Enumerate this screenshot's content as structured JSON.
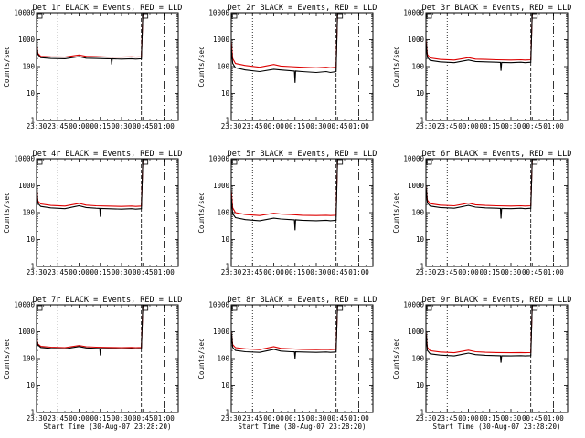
{
  "figure": {
    "background": "#ffffff",
    "axis_color": "#000000",
    "colors": {
      "events": "#000000",
      "lld": "#dd0000"
    }
  },
  "chart_data": [
    {
      "type": "line",
      "title": "Det 1r BLACK = Events, RED = LLD",
      "xlabel": "",
      "ylabel": "Counts/sec",
      "y_scale": "log",
      "ylim": [
        1,
        10000
      ],
      "yticks": [
        "1",
        "10",
        "100",
        "1000",
        "10000"
      ],
      "xlim": [
        "23:30",
        "01:10"
      ],
      "xticks": [
        "23:30",
        "23:45",
        "00:00",
        "00:15",
        "00:30",
        "00:45",
        "01:00"
      ],
      "grid": false,
      "marker_lines": [
        "23:30",
        "23:45",
        "00:44",
        "01:00"
      ],
      "series": [
        {
          "name": "Events",
          "color": "#000000",
          "x": [
            "23:30",
            "23:31",
            "23:33",
            "23:40",
            "23:50",
            "00:00",
            "00:05",
            "00:12",
            "00:20",
            "00:30",
            "00:37",
            "00:40",
            "00:44",
            "00:45"
          ],
          "values": [
            700,
            280,
            215,
            200,
            195,
            235,
            205,
            200,
            195,
            190,
            195,
            190,
            195,
            10000
          ],
          "dips": [
            {
              "x": "00:23",
              "value": 120
            }
          ]
        },
        {
          "name": "LLD",
          "color": "#dd0000",
          "x": [
            "23:30",
            "23:31",
            "23:33",
            "23:40",
            "23:50",
            "00:00",
            "00:05",
            "00:12",
            "00:20",
            "00:30",
            "00:37",
            "00:40",
            "00:44",
            "00:45"
          ],
          "values": [
            760,
            310,
            240,
            230,
            225,
            270,
            240,
            235,
            225,
            225,
            230,
            225,
            230,
            10000
          ]
        }
      ]
    },
    {
      "type": "line",
      "title": "Det 2r BLACK = Events, RED = LLD",
      "xlabel": "",
      "ylabel": "Counts/sec",
      "y_scale": "log",
      "ylim": [
        1,
        10000
      ],
      "yticks": [
        "1",
        "10",
        "100",
        "1000",
        "10000"
      ],
      "xlim": [
        "23:30",
        "01:10"
      ],
      "xticks": [
        "23:30",
        "23:45",
        "00:00",
        "00:15",
        "00:30",
        "00:45",
        "01:00"
      ],
      "grid": false,
      "marker_lines": [
        "23:30",
        "23:45",
        "00:44",
        "01:00"
      ],
      "series": [
        {
          "name": "Events",
          "color": "#000000",
          "x": [
            "23:30",
            "23:31",
            "23:33",
            "23:40",
            "23:50",
            "00:00",
            "00:05",
            "00:12",
            "00:20",
            "00:30",
            "00:37",
            "00:40",
            "00:44",
            "00:45"
          ],
          "values": [
            500,
            130,
            90,
            75,
            65,
            80,
            75,
            70,
            65,
            60,
            65,
            60,
            65,
            10000
          ],
          "dips": [
            {
              "x": "00:15",
              "value": 25
            }
          ]
        },
        {
          "name": "LLD",
          "color": "#dd0000",
          "x": [
            "23:30",
            "23:31",
            "23:33",
            "23:40",
            "23:50",
            "00:00",
            "00:05",
            "00:12",
            "00:20",
            "00:30",
            "00:37",
            "00:40",
            "00:44",
            "00:45"
          ],
          "values": [
            900,
            200,
            130,
            110,
            95,
            120,
            105,
            100,
            95,
            90,
            95,
            90,
            95,
            10000
          ]
        }
      ]
    },
    {
      "type": "line",
      "title": "Det 3r BLACK = Events, RED = LLD",
      "xlabel": "",
      "ylabel": "Counts/sec",
      "y_scale": "log",
      "ylim": [
        1,
        10000
      ],
      "yticks": [
        "1",
        "10",
        "100",
        "1000",
        "10000"
      ],
      "xlim": [
        "23:30",
        "01:10"
      ],
      "xticks": [
        "23:30",
        "23:45",
        "00:00",
        "00:15",
        "00:30",
        "00:45",
        "01:00"
      ],
      "grid": false,
      "marker_lines": [
        "23:30",
        "23:45",
        "00:44",
        "01:00"
      ],
      "series": [
        {
          "name": "Events",
          "color": "#000000",
          "x": [
            "23:30",
            "23:31",
            "23:33",
            "23:40",
            "23:50",
            "00:00",
            "00:05",
            "00:12",
            "00:20",
            "00:30",
            "00:37",
            "00:40",
            "00:44",
            "00:45"
          ],
          "values": [
            800,
            220,
            170,
            150,
            140,
            175,
            155,
            150,
            145,
            140,
            145,
            140,
            145,
            10000
          ],
          "dips": [
            {
              "x": "00:23",
              "value": 70
            }
          ]
        },
        {
          "name": "LLD",
          "color": "#dd0000",
          "x": [
            "23:30",
            "23:31",
            "23:33",
            "23:40",
            "23:50",
            "00:00",
            "00:05",
            "00:12",
            "00:20",
            "00:30",
            "00:37",
            "00:40",
            "00:44",
            "00:45"
          ],
          "values": [
            1000,
            280,
            210,
            185,
            175,
            215,
            190,
            185,
            180,
            175,
            180,
            175,
            180,
            10000
          ]
        }
      ]
    },
    {
      "type": "line",
      "title": "Det 4r BLACK = Events, RED = LLD",
      "xlabel": "",
      "ylabel": "Counts/sec",
      "y_scale": "log",
      "ylim": [
        1,
        10000
      ],
      "yticks": [
        "1",
        "10",
        "100",
        "1000",
        "10000"
      ],
      "xlim": [
        "23:30",
        "01:10"
      ],
      "xticks": [
        "23:30",
        "23:45",
        "00:00",
        "00:15",
        "00:30",
        "00:45",
        "01:00"
      ],
      "grid": false,
      "marker_lines": [
        "23:30",
        "23:45",
        "00:44",
        "01:00"
      ],
      "series": [
        {
          "name": "Events",
          "color": "#000000",
          "x": [
            "23:30",
            "23:31",
            "23:33",
            "23:40",
            "23:50",
            "00:00",
            "00:05",
            "00:12",
            "00:20",
            "00:30",
            "00:37",
            "00:40",
            "00:44",
            "00:45"
          ],
          "values": [
            900,
            220,
            170,
            150,
            140,
            180,
            155,
            145,
            140,
            135,
            140,
            135,
            140,
            10000
          ],
          "dips": [
            {
              "x": "00:15",
              "value": 70
            }
          ]
        },
        {
          "name": "LLD",
          "color": "#dd0000",
          "x": [
            "23:30",
            "23:31",
            "23:33",
            "23:40",
            "23:50",
            "00:00",
            "00:05",
            "00:12",
            "00:20",
            "00:30",
            "00:37",
            "00:40",
            "00:44",
            "00:45"
          ],
          "values": [
            1000,
            270,
            210,
            185,
            175,
            220,
            190,
            180,
            175,
            170,
            175,
            170,
            175,
            10000
          ]
        }
      ]
    },
    {
      "type": "line",
      "title": "Det 5r BLACK = Events, RED = LLD",
      "xlabel": "",
      "ylabel": "Counts/sec",
      "y_scale": "log",
      "ylim": [
        1,
        10000
      ],
      "yticks": [
        "1",
        "10",
        "100",
        "1000",
        "10000"
      ],
      "xlim": [
        "23:30",
        "01:10"
      ],
      "xticks": [
        "23:30",
        "23:45",
        "00:00",
        "00:15",
        "00:30",
        "00:45",
        "01:00"
      ],
      "grid": false,
      "marker_lines": [
        "23:30",
        "23:45",
        "00:44",
        "01:00"
      ],
      "series": [
        {
          "name": "Events",
          "color": "#000000",
          "x": [
            "23:30",
            "23:31",
            "23:33",
            "23:40",
            "23:50",
            "00:00",
            "00:05",
            "00:12",
            "00:20",
            "00:30",
            "00:37",
            "00:40",
            "00:44",
            "00:45"
          ],
          "values": [
            400,
            90,
            65,
            55,
            50,
            62,
            58,
            55,
            52,
            50,
            52,
            50,
            52,
            10000
          ],
          "dips": [
            {
              "x": "00:15",
              "value": 22
            }
          ]
        },
        {
          "name": "LLD",
          "color": "#dd0000",
          "x": [
            "23:30",
            "23:31",
            "23:33",
            "23:40",
            "23:50",
            "00:00",
            "00:05",
            "00:12",
            "00:20",
            "00:30",
            "00:37",
            "00:40",
            "00:44",
            "00:45"
          ],
          "values": [
            700,
            150,
            100,
            85,
            78,
            95,
            88,
            85,
            80,
            78,
            80,
            78,
            80,
            10000
          ]
        }
      ]
    },
    {
      "type": "line",
      "title": "Det 6r BLACK = Events, RED = LLD",
      "xlabel": "",
      "ylabel": "Counts/sec",
      "y_scale": "log",
      "ylim": [
        1,
        10000
      ],
      "yticks": [
        "1",
        "10",
        "100",
        "1000",
        "10000"
      ],
      "xlim": [
        "23:30",
        "01:10"
      ],
      "xticks": [
        "23:30",
        "23:45",
        "00:00",
        "00:15",
        "00:30",
        "00:45",
        "01:00"
      ],
      "grid": false,
      "marker_lines": [
        "23:30",
        "23:45",
        "00:44",
        "01:00"
      ],
      "series": [
        {
          "name": "Events",
          "color": "#000000",
          "x": [
            "23:30",
            "23:31",
            "23:33",
            "23:40",
            "23:50",
            "00:00",
            "00:05",
            "00:12",
            "00:20",
            "00:30",
            "00:37",
            "00:40",
            "00:44",
            "00:45"
          ],
          "values": [
            900,
            230,
            175,
            155,
            145,
            185,
            160,
            150,
            145,
            140,
            145,
            140,
            145,
            10000
          ],
          "dips": [
            {
              "x": "00:23",
              "value": 60
            }
          ]
        },
        {
          "name": "LLD",
          "color": "#dd0000",
          "x": [
            "23:30",
            "23:31",
            "23:33",
            "23:40",
            "23:50",
            "00:00",
            "00:05",
            "00:12",
            "00:20",
            "00:30",
            "00:37",
            "00:40",
            "00:44",
            "00:45"
          ],
          "values": [
            1000,
            290,
            215,
            190,
            180,
            225,
            195,
            185,
            180,
            175,
            180,
            175,
            180,
            10000
          ]
        }
      ]
    },
    {
      "type": "line",
      "title": "Det 7r BLACK = Events, RED = LLD",
      "xlabel": "Start Time (30-Aug-07 23:28:20)",
      "ylabel": "Counts/sec",
      "y_scale": "log",
      "ylim": [
        1,
        10000
      ],
      "yticks": [
        "1",
        "10",
        "100",
        "1000",
        "10000"
      ],
      "xlim": [
        "23:30",
        "01:10"
      ],
      "xticks": [
        "23:30",
        "23:45",
        "00:00",
        "00:15",
        "00:30",
        "00:45",
        "01:00"
      ],
      "grid": false,
      "marker_lines": [
        "23:30",
        "23:45",
        "00:44",
        "01:00"
      ],
      "series": [
        {
          "name": "Events",
          "color": "#000000",
          "x": [
            "23:30",
            "23:31",
            "23:33",
            "23:40",
            "23:50",
            "00:00",
            "00:05",
            "00:12",
            "00:20",
            "00:30",
            "00:37",
            "00:40",
            "00:44",
            "00:45"
          ],
          "values": [
            550,
            320,
            260,
            240,
            230,
            280,
            250,
            240,
            235,
            230,
            235,
            230,
            235,
            10000
          ],
          "dips": [
            {
              "x": "00:15",
              "value": 130
            }
          ]
        },
        {
          "name": "LLD",
          "color": "#dd0000",
          "x": [
            "23:30",
            "23:31",
            "23:33",
            "23:40",
            "23:50",
            "00:00",
            "00:05",
            "00:12",
            "00:20",
            "00:30",
            "00:37",
            "00:40",
            "00:44",
            "00:45"
          ],
          "values": [
            600,
            350,
            285,
            265,
            255,
            305,
            275,
            265,
            260,
            255,
            260,
            255,
            260,
            10000
          ]
        }
      ]
    },
    {
      "type": "line",
      "title": "Det 8r BLACK = Events, RED = LLD",
      "xlabel": "Start Time (30-Aug-07 23:28:20)",
      "ylabel": "Counts/sec",
      "y_scale": "log",
      "ylim": [
        1,
        10000
      ],
      "yticks": [
        "1",
        "10",
        "100",
        "1000",
        "10000"
      ],
      "xlim": [
        "23:30",
        "01:10"
      ],
      "xticks": [
        "23:30",
        "23:45",
        "00:00",
        "00:15",
        "00:30",
        "00:45",
        "01:00"
      ],
      "grid": false,
      "marker_lines": [
        "23:30",
        "23:45",
        "00:44",
        "01:00"
      ],
      "series": [
        {
          "name": "Events",
          "color": "#000000",
          "x": [
            "23:30",
            "23:31",
            "23:33",
            "23:40",
            "23:50",
            "00:00",
            "00:05",
            "00:12",
            "00:20",
            "00:30",
            "00:37",
            "00:40",
            "00:44",
            "00:45"
          ],
          "values": [
            1000,
            260,
            200,
            180,
            170,
            220,
            190,
            180,
            175,
            170,
            175,
            170,
            175,
            10000
          ],
          "dips": [
            {
              "x": "00:15",
              "value": 100
            }
          ]
        },
        {
          "name": "LLD",
          "color": "#dd0000",
          "x": [
            "23:30",
            "23:31",
            "23:33",
            "23:40",
            "23:50",
            "00:00",
            "00:05",
            "00:12",
            "00:20",
            "00:30",
            "00:37",
            "00:40",
            "00:44",
            "00:45"
          ],
          "values": [
            1000,
            330,
            255,
            230,
            215,
            275,
            240,
            230,
            220,
            215,
            220,
            215,
            220,
            10000
          ]
        }
      ]
    },
    {
      "type": "line",
      "title": "Det 9r BLACK = Events, RED = LLD",
      "xlabel": "Start Time (30-Aug-07 23:28:20)",
      "ylabel": "Counts/sec",
      "y_scale": "log",
      "ylim": [
        1,
        10000
      ],
      "yticks": [
        "1",
        "10",
        "100",
        "1000",
        "10000"
      ],
      "xlim": [
        "23:30",
        "01:10"
      ],
      "xticks": [
        "23:30",
        "23:45",
        "00:00",
        "00:15",
        "00:30",
        "00:45",
        "01:00"
      ],
      "grid": false,
      "marker_lines": [
        "23:30",
        "23:45",
        "00:44",
        "01:00"
      ],
      "series": [
        {
          "name": "Events",
          "color": "#000000",
          "x": [
            "23:30",
            "23:31",
            "23:33",
            "23:40",
            "23:50",
            "00:00",
            "00:05",
            "00:12",
            "00:20",
            "00:30",
            "00:37",
            "00:40",
            "00:44",
            "00:45"
          ],
          "values": [
            900,
            200,
            150,
            135,
            125,
            160,
            140,
            132,
            128,
            125,
            128,
            125,
            128,
            10000
          ],
          "dips": [
            {
              "x": "00:23",
              "value": 70
            }
          ]
        },
        {
          "name": "LLD",
          "color": "#dd0000",
          "x": [
            "23:30",
            "23:31",
            "23:33",
            "23:40",
            "23:50",
            "00:00",
            "00:05",
            "00:12",
            "00:20",
            "00:30",
            "00:37",
            "00:40",
            "00:44",
            "00:45"
          ],
          "values": [
            1000,
            260,
            195,
            175,
            165,
            205,
            180,
            172,
            168,
            165,
            168,
            165,
            168,
            10000
          ]
        }
      ]
    }
  ]
}
